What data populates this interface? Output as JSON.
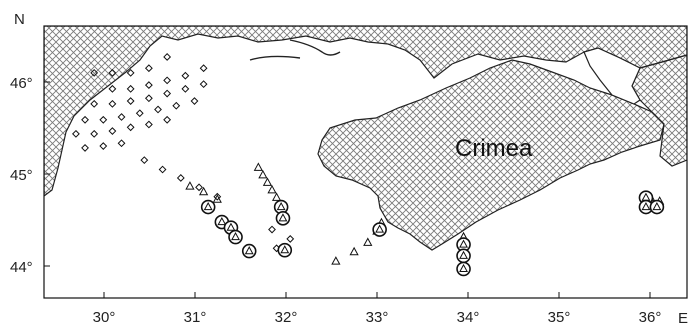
{
  "map": {
    "region_label": "Crimea",
    "north_label": "N",
    "east_label": "E",
    "lon_ticks": [
      "30°",
      "31°",
      "32°",
      "33°",
      "34°",
      "35°",
      "36°"
    ],
    "lat_ticks": [
      "46°",
      "45°",
      "44°"
    ],
    "lon_range": [
      29.4,
      36.45
    ],
    "lat_range": [
      43.65,
      46.55
    ],
    "colors": {
      "land_hatch": "#7a7a7a",
      "coast": "#222222",
      "frame": "#111111",
      "symbol": "#111111"
    },
    "stations": {
      "diamonds": [
        [
          29.95,
          46.05
        ],
        [
          30.15,
          46.05
        ],
        [
          30.35,
          46.05
        ],
        [
          30.55,
          46.1
        ],
        [
          30.75,
          46.22
        ],
        [
          30.15,
          45.88
        ],
        [
          30.35,
          45.88
        ],
        [
          30.55,
          45.92
        ],
        [
          30.75,
          45.97
        ],
        [
          30.95,
          46.02
        ],
        [
          31.15,
          46.1
        ],
        [
          29.95,
          45.72
        ],
        [
          30.15,
          45.72
        ],
        [
          30.35,
          45.75
        ],
        [
          30.55,
          45.78
        ],
        [
          30.75,
          45.83
        ],
        [
          30.95,
          45.88
        ],
        [
          31.15,
          45.93
        ],
        [
          29.85,
          45.55
        ],
        [
          30.05,
          45.55
        ],
        [
          30.25,
          45.58
        ],
        [
          30.45,
          45.62
        ],
        [
          30.65,
          45.66
        ],
        [
          30.85,
          45.7
        ],
        [
          31.05,
          45.75
        ],
        [
          29.75,
          45.4
        ],
        [
          29.95,
          45.4
        ],
        [
          30.15,
          45.43
        ],
        [
          30.35,
          45.47
        ],
        [
          30.55,
          45.5
        ],
        [
          30.75,
          45.55
        ],
        [
          29.85,
          45.25
        ],
        [
          30.05,
          45.27
        ],
        [
          30.25,
          45.3
        ],
        [
          30.5,
          45.12
        ],
        [
          30.7,
          45.02
        ],
        [
          30.9,
          44.93
        ],
        [
          31.1,
          44.83
        ],
        [
          31.3,
          44.73
        ],
        [
          31.9,
          44.38
        ],
        [
          32.1,
          44.28
        ],
        [
          31.95,
          44.18
        ]
      ],
      "triangles": [
        [
          31.0,
          44.84
        ],
        [
          31.15,
          44.78
        ],
        [
          31.3,
          44.7
        ],
        [
          31.75,
          45.04
        ],
        [
          31.8,
          44.96
        ],
        [
          31.85,
          44.88
        ],
        [
          31.9,
          44.8
        ],
        [
          31.95,
          44.72
        ],
        [
          32.6,
          44.04
        ],
        [
          32.8,
          44.14
        ],
        [
          32.95,
          44.24
        ],
        [
          33.05,
          44.36
        ],
        [
          33.1,
          44.45
        ],
        [
          34.0,
          44.3
        ],
        [
          34.0,
          44.2
        ],
        [
          34.0,
          44.08
        ],
        [
          36.05,
          44.72
        ],
        [
          36.15,
          44.68
        ]
      ],
      "circled_triangles": [
        [
          31.2,
          44.62
        ],
        [
          31.35,
          44.46
        ],
        [
          31.45,
          44.4
        ],
        [
          31.5,
          44.3
        ],
        [
          31.65,
          44.15
        ],
        [
          32.0,
          44.62
        ],
        [
          32.02,
          44.5
        ],
        [
          32.04,
          44.16
        ],
        [
          33.08,
          44.38
        ],
        [
          34.0,
          44.22
        ],
        [
          34.0,
          44.1
        ],
        [
          34.0,
          43.96
        ],
        [
          36.0,
          44.72
        ],
        [
          36.0,
          44.62
        ],
        [
          36.12,
          44.62
        ]
      ]
    }
  }
}
